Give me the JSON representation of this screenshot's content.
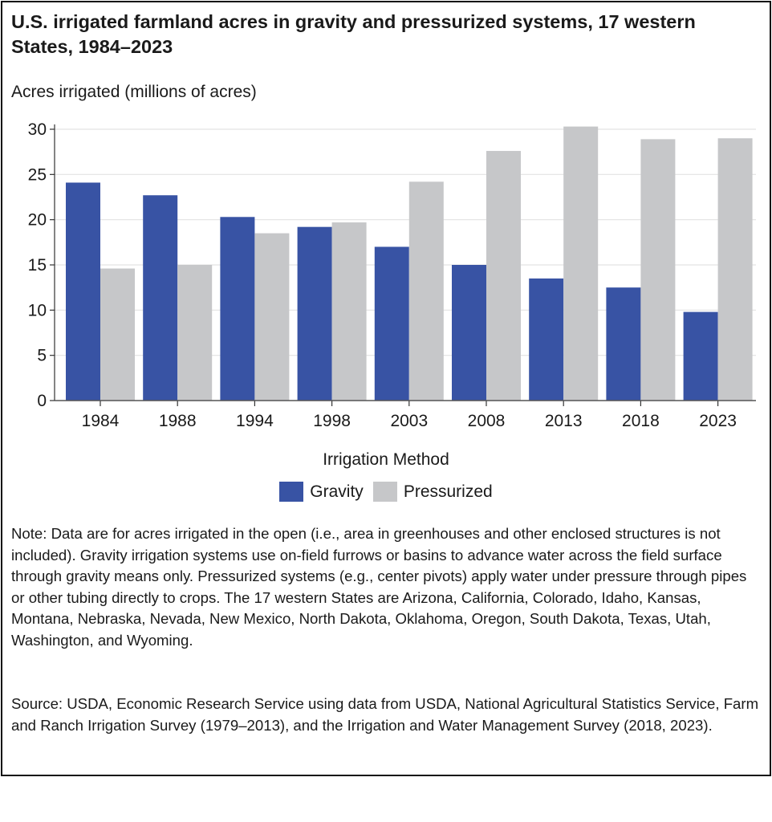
{
  "chart_data": {
    "type": "bar",
    "title": "U.S. irrigated farmland acres in gravity and pressurized systems, 17 western States, 1984–2023",
    "ylabel": "Acres irrigated (millions of acres)",
    "xlabel": "",
    "categories": [
      "1984",
      "1988",
      "1994",
      "1998",
      "2003",
      "2008",
      "2013",
      "2018",
      "2023"
    ],
    "series": [
      {
        "name": "Gravity",
        "color": "#3853a4",
        "values": [
          24.1,
          22.7,
          20.3,
          19.2,
          17.0,
          15.0,
          13.5,
          12.5,
          9.8
        ]
      },
      {
        "name": "Pressurized",
        "color": "#c6c7c9",
        "values": [
          14.6,
          15.0,
          18.5,
          19.7,
          24.2,
          27.6,
          30.3,
          28.9,
          29.0
        ]
      }
    ],
    "ylim": [
      0,
      30
    ],
    "yticks": [
      "0",
      "5",
      "10",
      "15",
      "20",
      "25",
      "30"
    ],
    "grid": true,
    "legend_title": "Irrigation Method",
    "legend_position": "bottom"
  },
  "note": "Note: Data are for acres irrigated in the open (i.e., area in greenhouses and other enclosed structures is not included). Gravity irrigation systems use on-field furrows or basins to advance water across the field surface through gravity means only. Pressurized systems (e.g., center pivots) apply water under pressure through pipes or other tubing directly to crops. The 17 western States are Arizona, California, Colorado, Idaho, Kansas, Montana, Nebraska, Nevada, New Mexico, North Dakota, Oklahoma, Oregon, South Dakota, Texas, Utah, Washington, and Wyoming.",
  "source": "Source: USDA, Economic Research Service using data from USDA, National Agricultural Statistics Service, Farm and Ranch Irrigation Survey (1979–2013), and the Irrigation and Water Management Survey (2018, 2023)."
}
